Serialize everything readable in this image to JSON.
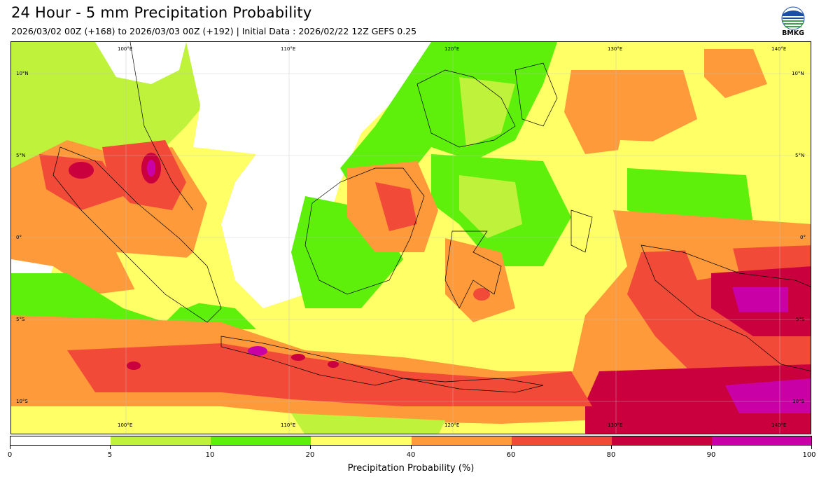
{
  "header": {
    "title": "24 Hour - 5 mm Precipitation Probability",
    "subtitle": "2026/03/02 00Z (+168) to 2026/03/03 00Z (+192) | Initial Data : 2026/02/22 12Z GEFS 0.25"
  },
  "logo": {
    "text": "BMKG",
    "icon": "bmkg-logo-icon"
  },
  "map": {
    "lon_top": [
      "100°E",
      "110°E",
      "120°E",
      "130°E",
      "140°E"
    ],
    "lon_bottom": [
      "100°E",
      "110°E",
      "120°E",
      "130°E",
      "140°E"
    ],
    "lat_left": [
      "10°N",
      "5°N",
      "0°",
      "5°S",
      "10°S"
    ],
    "lat_right": [
      "10°N",
      "5°N",
      "0°",
      "5°S",
      "10°S"
    ]
  },
  "colorbar": {
    "title": "Precipitation Probability (%)",
    "ticks": [
      "0",
      "5",
      "10",
      "20",
      "40",
      "60",
      "80",
      "90",
      "100"
    ],
    "colors": [
      "#ffffff",
      "#bff23a",
      "#5ef00a",
      "#ffff66",
      "#ff9a3a",
      "#f24a38",
      "#c9003d",
      "#c800a6"
    ]
  }
}
